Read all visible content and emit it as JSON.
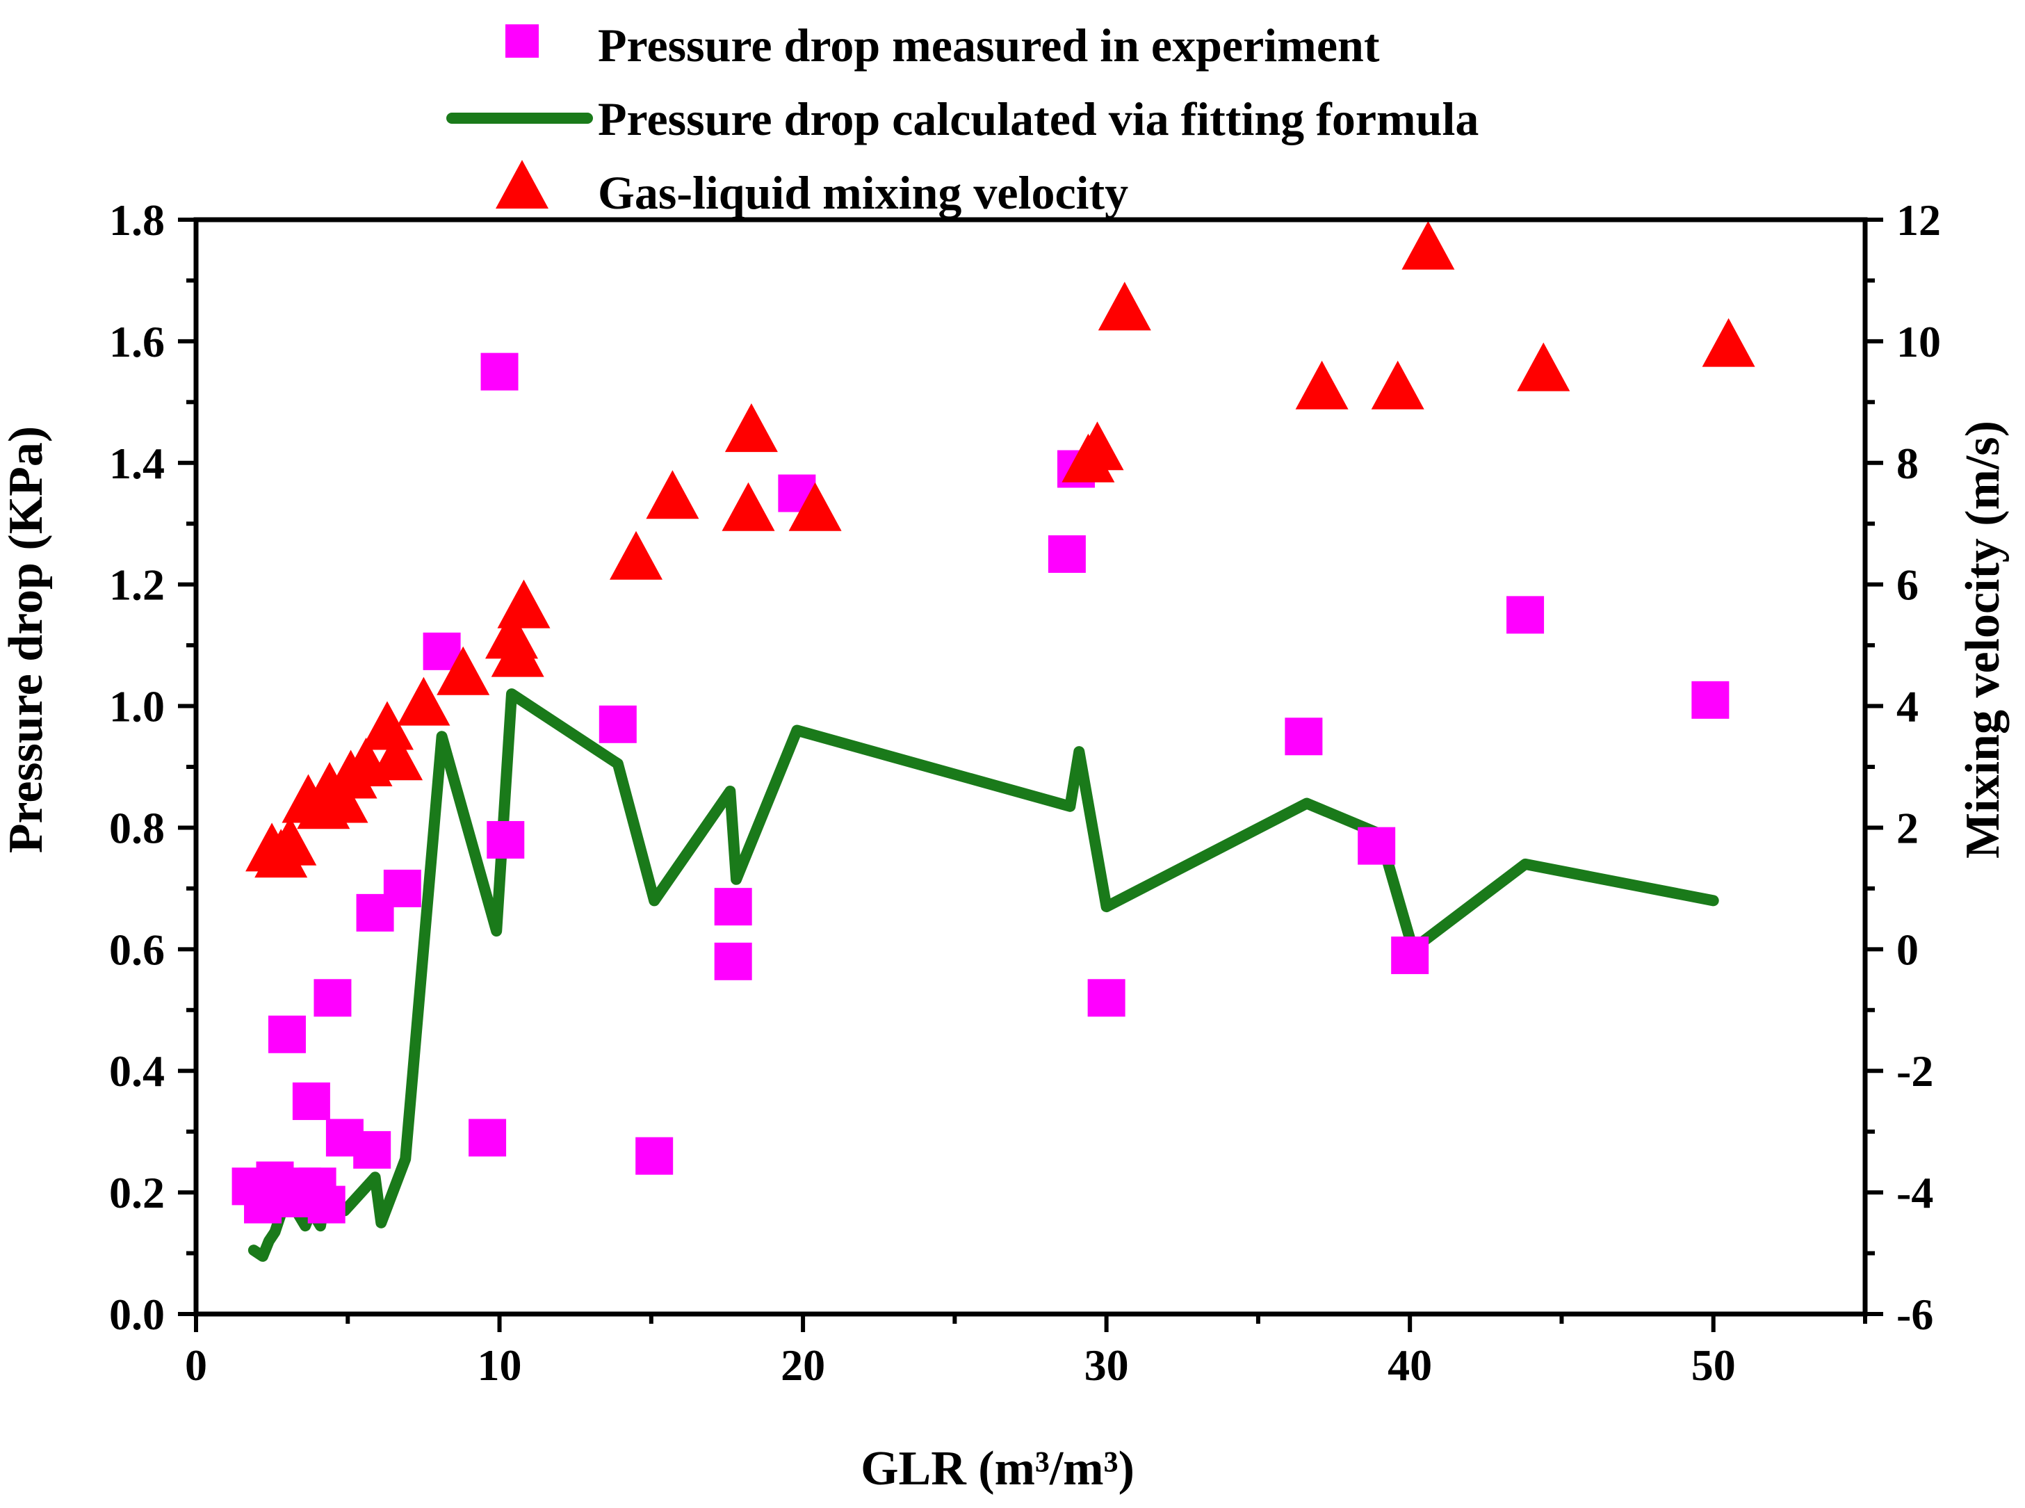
{
  "chart_data": {
    "type": "scatter",
    "title": "",
    "xlabel": "GLR (m³/m³)",
    "ylabel": "Pressure drop (KPa)",
    "y2label": "Mixing velocity (m/s)",
    "xlim": [
      0,
      55
    ],
    "ylim": [
      0,
      1.8
    ],
    "y2lim": [
      -6,
      12
    ],
    "x_ticks": [
      0,
      10,
      20,
      30,
      40,
      50
    ],
    "x_tick_labels": [
      "0",
      "10",
      "20",
      "30",
      "40",
      "50"
    ],
    "y_ticks": [
      0,
      0.2,
      0.4,
      0.6,
      0.8,
      1.0,
      1.2,
      1.4,
      1.6,
      1.8
    ],
    "y_tick_labels": [
      "0.0",
      "0.2",
      "0.4",
      "0.6",
      "0.8",
      "1.0",
      "1.2",
      "1.4",
      "1.6",
      "1.8"
    ],
    "y2_ticks": [
      -6,
      -4,
      -2,
      0,
      2,
      4,
      6,
      8,
      10,
      12
    ],
    "y2_tick_labels": [
      "-6",
      "-4",
      "-2",
      "0",
      "2",
      "4",
      "6",
      "8",
      "10",
      "12"
    ],
    "legend_position": "top-center",
    "series": [
      {
        "name": "Pressure drop measured in experiment",
        "kind": "square",
        "axis": "left",
        "color": "#ff00ff",
        "x": [
          1.8,
          2.2,
          2.4,
          2.6,
          3.0,
          3.2,
          3.5,
          3.8,
          4.0,
          4.3,
          4.5,
          4.9,
          5.8,
          5.9,
          6.8,
          8.1,
          9.6,
          10.0,
          10.2,
          13.9,
          15.1,
          17.7,
          17.7,
          19.8,
          28.7,
          29.0,
          30.0,
          36.5,
          38.9,
          40.0,
          43.8,
          49.9
        ],
        "y": [
          0.21,
          0.18,
          0.2,
          0.22,
          0.46,
          0.19,
          0.21,
          0.35,
          0.21,
          0.18,
          0.52,
          0.29,
          0.27,
          0.66,
          0.7,
          1.09,
          0.29,
          1.55,
          0.78,
          0.97,
          0.26,
          0.58,
          0.67,
          1.35,
          1.25,
          1.39,
          0.52,
          0.95,
          0.77,
          0.59,
          1.15,
          1.01
        ]
      },
      {
        "name": "Pressure drop calculated via fitting formula",
        "kind": "line",
        "axis": "left",
        "color": "#1a7a1a",
        "x": [
          1.9,
          2.2,
          2.4,
          2.6,
          3.0,
          3.6,
          3.8,
          4.1,
          4.3,
          4.9,
          5.9,
          6.1,
          6.9,
          8.1,
          9.9,
          10.4,
          13.9,
          15.1,
          17.6,
          17.8,
          19.8,
          28.8,
          29.1,
          30.0,
          36.6,
          39.0,
          40.1,
          43.8,
          50.0
        ],
        "y": [
          0.105,
          0.095,
          0.12,
          0.135,
          0.195,
          0.145,
          0.17,
          0.145,
          0.21,
          0.17,
          0.225,
          0.15,
          0.255,
          0.95,
          0.63,
          1.02,
          0.905,
          0.68,
          0.86,
          0.715,
          0.96,
          0.835,
          0.925,
          0.67,
          0.84,
          0.79,
          0.6,
          0.74,
          0.68
        ]
      },
      {
        "name": "Gas-liquid mixing velocity",
        "kind": "triangle",
        "axis": "right",
        "color": "#ff0000",
        "x": [
          2.5,
          2.8,
          3.1,
          3.7,
          4.2,
          4.4,
          4.8,
          5.1,
          5.6,
          6.3,
          6.6,
          7.5,
          8.8,
          10.4,
          10.6,
          10.8,
          14.5,
          15.7,
          18.2,
          18.3,
          20.4,
          29.4,
          29.7,
          30.6,
          37.1,
          39.6,
          40.6,
          44.4,
          50.5
        ],
        "y": [
          1.6,
          1.5,
          1.7,
          2.4,
          2.3,
          2.6,
          2.4,
          2.8,
          3.0,
          3.6,
          3.1,
          4.0,
          4.5,
          5.1,
          4.8,
          5.6,
          6.4,
          7.4,
          7.2,
          8.5,
          7.2,
          8.0,
          8.2,
          10.5,
          9.2,
          9.2,
          11.5,
          9.5,
          9.9
        ]
      }
    ]
  }
}
